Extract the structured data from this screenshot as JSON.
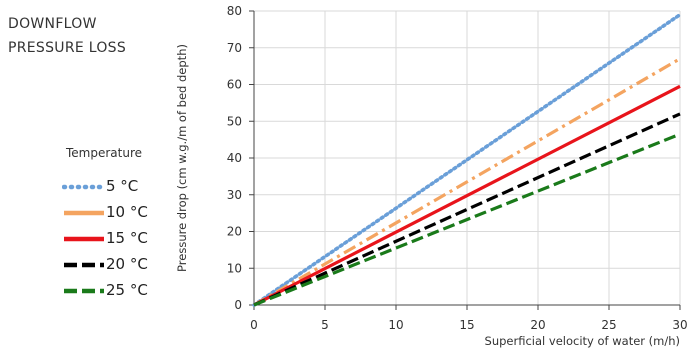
{
  "title_lines": [
    "DOWNFLOW",
    "PRESSURE LOSS"
  ],
  "legend_title": "Temperature",
  "chart_data": {
    "type": "line",
    "xlabel": "Superficial velocity of water (m/h)",
    "ylabel": "Pressure drop (cm w.g./m of bed depth)",
    "xlim": [
      0,
      30
    ],
    "ylim": [
      0,
      80
    ],
    "x_ticks": [
      0,
      5,
      10,
      15,
      20,
      25,
      30
    ],
    "y_ticks": [
      0,
      10,
      20,
      30,
      40,
      50,
      60,
      70,
      80
    ],
    "grid": true,
    "legend_position": "left",
    "series": [
      {
        "name": "5 °C",
        "color": "#6a9fd8",
        "style": "dotted",
        "x": [
          0,
          30
        ],
        "y": [
          0,
          79
        ]
      },
      {
        "name": "10 °C",
        "color": "#f4a460",
        "style": "dash-dot",
        "x": [
          0,
          30
        ],
        "y": [
          0,
          67
        ]
      },
      {
        "name": "15 °C",
        "color": "#e8141b",
        "style": "solid",
        "x": [
          0,
          30
        ],
        "y": [
          0,
          59.5
        ]
      },
      {
        "name": "20 °C",
        "color": "#000000",
        "style": "dashed",
        "x": [
          0,
          30
        ],
        "y": [
          0,
          52
        ]
      },
      {
        "name": "25 °C",
        "color": "#1a7a1a",
        "style": "dashed",
        "x": [
          0,
          30
        ],
        "y": [
          0,
          46.5
        ]
      }
    ]
  }
}
